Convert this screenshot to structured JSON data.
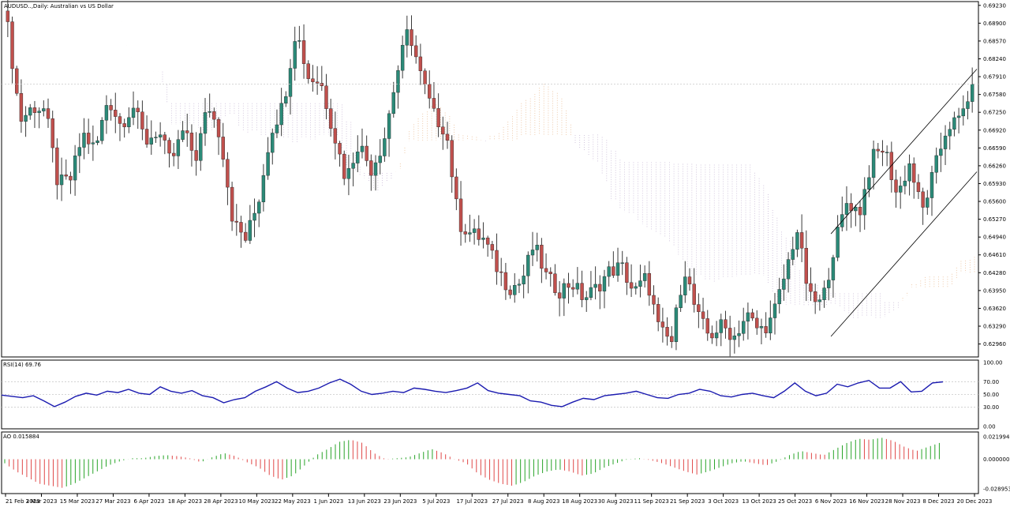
{
  "window": {
    "title": "AUDUSD..,Daily: Australian vs US Dollar"
  },
  "colors": {
    "bull": "#2b8a78",
    "bear": "#c0504d",
    "wick": "#3a3a3a",
    "kumo_top": "#e3a772",
    "kumo_violet": "#b6a2c8",
    "rsi_line": "#1b1bb0",
    "ao_up": "#28a428",
    "ao_down": "#e04848",
    "grid": "#c8c8c8",
    "border": "#000000"
  },
  "chart_data": [
    {
      "type": "candlestick",
      "pane": "price",
      "title": "AUDUSD..,Daily: Australian vs US Dollar",
      "ylim": [
        0.6272,
        0.693
      ],
      "y_ticks": [
        "0.69230",
        "0.68900",
        "0.68570",
        "0.68240",
        "0.67910",
        "0.67580",
        "0.67250",
        "0.66920",
        "0.66590",
        "0.66260",
        "0.65930",
        "0.65600",
        "0.65270",
        "0.64940",
        "0.64610",
        "0.64280",
        "0.63950",
        "0.63620",
        "0.63290",
        "0.62960"
      ],
      "x_ticks": [
        "21 Feb 2023",
        "3 Mar 2023",
        "15 Mar 2023",
        "27 Mar 2023",
        "6 Apr 2023",
        "18 Apr 2023",
        "28 Apr 2023",
        "10 May 2023",
        "22 May 2023",
        "1 Jun 2023",
        "13 Jun 2023",
        "23 Jun 2023",
        "5 Jul 2023",
        "17 Jul 2023",
        "27 Jul 2023",
        "8 Aug 2023",
        "18 Aug 2023",
        "30 Aug 2023",
        "11 Sep 2023",
        "21 Sep 2023",
        "3 Oct 2023",
        "13 Oct 2023",
        "25 Oct 2023",
        "6 Nov 2023",
        "16 Nov 2023",
        "28 Nov 2023",
        "8 Dec 2023",
        "20 Dec 2023"
      ],
      "close_anchors": [
        0.688,
        0.671,
        0.6735,
        0.673,
        0.6592,
        0.66,
        0.6685,
        0.6655,
        0.6752,
        0.6702,
        0.6737,
        0.667,
        0.6692,
        0.663,
        0.669,
        0.664,
        0.674,
        0.668,
        0.652,
        0.649,
        0.656,
        0.669,
        0.674,
        0.688,
        0.679,
        0.678,
        0.669,
        0.66,
        0.667,
        0.662,
        0.667,
        0.679,
        0.688,
        0.679,
        0.672,
        0.669,
        0.652,
        0.65,
        0.649,
        0.644,
        0.64,
        0.641,
        0.648,
        0.642,
        0.6395,
        0.641,
        0.638,
        0.64,
        0.643,
        0.644,
        0.639,
        0.642,
        0.632,
        0.63,
        0.644,
        0.635,
        0.631,
        0.633,
        0.631,
        0.635,
        0.632,
        0.634,
        0.642,
        0.651,
        0.638,
        0.637,
        0.648,
        0.656,
        0.654,
        0.664,
        0.666,
        0.657,
        0.663,
        0.654,
        0.662,
        0.67,
        0.671,
        0.6777
      ],
      "channel_lines": [
        {
          "from": [
            "6 Nov 2023",
            0.65
          ],
          "to": [
            "20 Dec 2023",
            0.68
          ]
        },
        {
          "from": [
            "6 Nov 2023",
            0.631
          ],
          "to": [
            "20 Dec 2023",
            0.661
          ]
        }
      ]
    },
    {
      "type": "line",
      "pane": "rsi",
      "title": "RSI(14) 69.76",
      "ylim": [
        0,
        100
      ],
      "y_ticks": [
        "100.00",
        "70.00",
        "50.00",
        "30.00",
        "0.00"
      ],
      "levels": [
        70,
        50,
        30
      ],
      "series": [
        {
          "values": [
            49,
            47,
            45,
            48,
            40,
            31,
            38,
            47,
            52,
            49,
            55,
            53,
            58,
            52,
            50,
            62,
            55,
            52,
            56,
            48,
            45,
            37,
            42,
            45,
            55,
            62,
            70,
            60,
            53,
            55,
            60,
            68,
            74,
            66,
            55,
            50,
            52,
            55,
            53,
            60,
            58,
            55,
            53,
            56,
            60,
            68,
            56,
            52,
            50,
            48,
            40,
            38,
            33,
            31,
            38,
            44,
            42,
            48,
            50,
            52,
            55,
            50,
            45,
            44,
            50,
            52,
            58,
            55,
            48,
            46,
            50,
            52,
            48,
            45,
            55,
            68,
            55,
            48,
            52,
            66,
            62,
            68,
            72,
            60,
            60,
            70,
            54,
            55,
            68,
            69.76
          ]
        }
      ]
    },
    {
      "type": "bar",
      "pane": "ao",
      "title": "AO 0.015884",
      "ylim": [
        -0.028953,
        0.021994
      ],
      "y_ticks": [
        "0.021994",
        "0.000000",
        "-0.028953"
      ],
      "series": [
        {
          "values": [
            -0.004,
            -0.012,
            -0.018,
            -0.024,
            -0.026,
            -0.028,
            -0.024,
            -0.018,
            -0.012,
            -0.006,
            -0.002,
            0.001,
            0.001,
            0.003,
            0.004,
            0.003,
            0.001,
            -0.003,
            0.002,
            0.006,
            0.003,
            -0.003,
            -0.008,
            -0.016,
            -0.02,
            -0.016,
            -0.006,
            0.004,
            0.01,
            0.017,
            0.019,
            0.016,
            0.006,
            0.0,
            0.001,
            0.002,
            0.006,
            0.01,
            0.006,
            0.0,
            -0.004,
            -0.014,
            -0.02,
            -0.024,
            -0.026,
            -0.022,
            -0.016,
            -0.012,
            -0.01,
            -0.012,
            -0.016,
            -0.014,
            -0.008,
            -0.004,
            0.0,
            0.001,
            -0.001,
            -0.004,
            -0.008,
            -0.012,
            -0.015,
            -0.012,
            -0.008,
            -0.004,
            -0.002,
            -0.004,
            -0.006,
            -0.002,
            0.004,
            0.008,
            0.006,
            0.004,
            0.01,
            0.016,
            0.02,
            0.019,
            0.021,
            0.018,
            0.012,
            0.008,
            0.012,
            0.015884
          ]
        }
      ]
    }
  ]
}
